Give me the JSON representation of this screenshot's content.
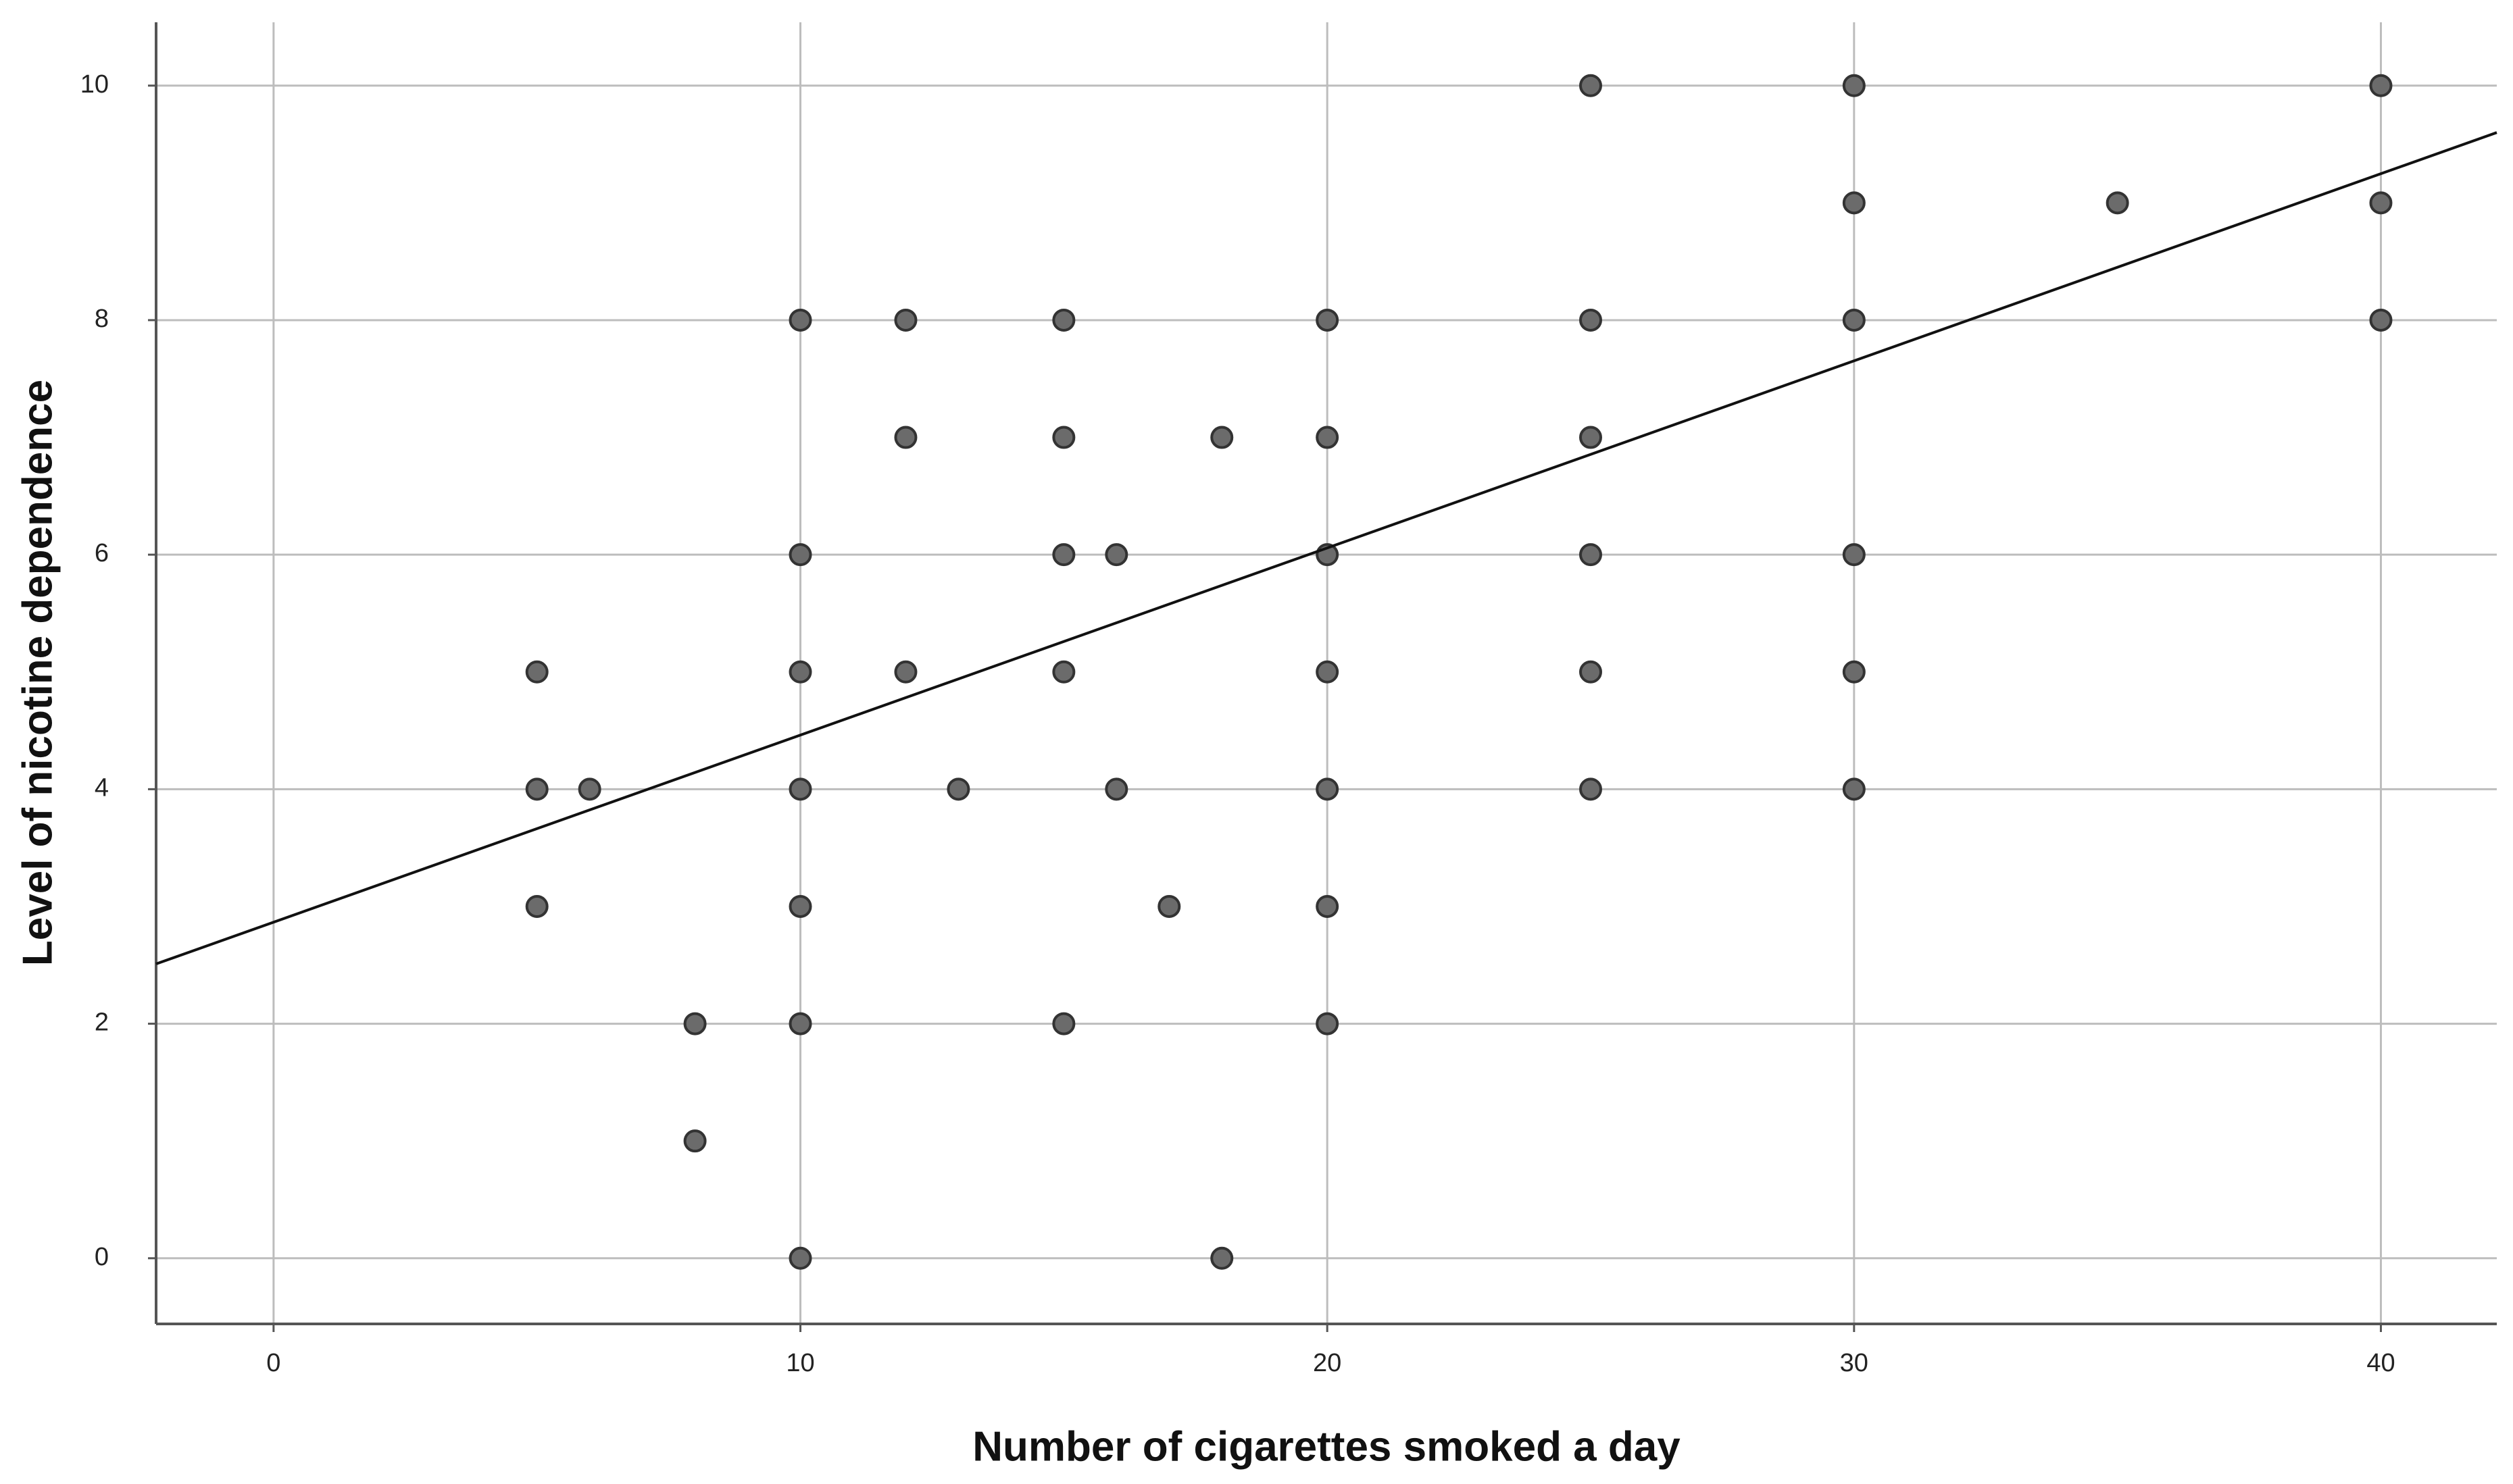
{
  "chart_data": {
    "type": "scatter",
    "x_label": "Number of cigarettes smoked a day",
    "y_label": "Level of nicotine dependence",
    "xlim": [
      -2.23,
      42.2
    ],
    "ylim": [
      -0.56,
      10.54
    ],
    "xticks": [
      0,
      10,
      20,
      30,
      40
    ],
    "yticks": [
      0,
      2,
      4,
      6,
      8,
      10
    ],
    "grid": true,
    "series": [
      {
        "color": "#6b6b6b",
        "x": [
          5,
          5,
          6,
          5,
          8,
          8,
          10,
          10,
          10,
          10,
          10,
          10,
          10,
          12,
          12,
          12,
          13,
          15,
          15,
          15,
          15,
          15,
          16,
          16,
          17,
          18,
          18,
          20,
          20,
          20,
          20,
          20,
          20,
          20,
          25,
          25,
          25,
          25,
          25,
          25,
          30,
          30,
          30,
          30,
          30,
          30,
          35,
          40,
          40,
          40
        ],
        "values": [
          5,
          4,
          4,
          3,
          2,
          1,
          8,
          6,
          5,
          4,
          3,
          2,
          0,
          8,
          7,
          5,
          4,
          8,
          7,
          6,
          5,
          2,
          6,
          4,
          3,
          7,
          0,
          8,
          7,
          6,
          5,
          4,
          3,
          2,
          10,
          8,
          7,
          6,
          5,
          4,
          10,
          9,
          8,
          6,
          5,
          4,
          9,
          10,
          9,
          8
        ]
      }
    ],
    "fit_line": {
      "color": "#111111",
      "x": [
        -2.23,
        42.2
      ],
      "values": [
        2.51,
        9.6
      ]
    }
  }
}
